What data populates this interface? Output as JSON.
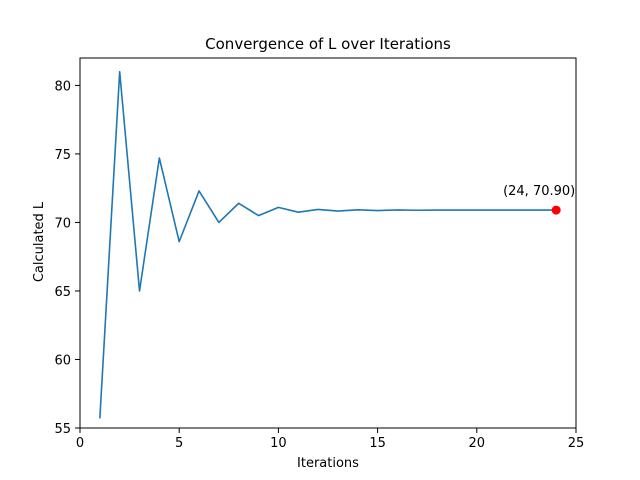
{
  "chart_data": {
    "type": "line",
    "title": "Convergence of L over Iterations",
    "xlabel": "Iterations",
    "ylabel": "Calculated L",
    "xlim": [
      0,
      25
    ],
    "ylim": [
      55,
      82
    ],
    "xticks": [
      0,
      5,
      10,
      15,
      20,
      25
    ],
    "yticks": [
      55,
      60,
      65,
      70,
      75,
      80
    ],
    "grid": false,
    "series": [
      {
        "color": "#1f77b4",
        "x": [
          1,
          2,
          3,
          4,
          5,
          6,
          7,
          8,
          9,
          10,
          11,
          12,
          13,
          14,
          15,
          16,
          17,
          18,
          19,
          20,
          21,
          22,
          23,
          24
        ],
        "y": [
          55.7,
          81.0,
          65.0,
          74.7,
          68.6,
          72.3,
          70.0,
          71.4,
          70.5,
          71.1,
          70.75,
          70.95,
          70.83,
          70.92,
          70.87,
          70.91,
          70.89,
          70.9,
          70.9,
          70.9,
          70.9,
          70.9,
          70.9,
          70.9
        ]
      }
    ],
    "highlight_point": {
      "x": 24,
      "y": 70.9,
      "color": "#ff0000",
      "label": "(24, 70.90)"
    }
  }
}
